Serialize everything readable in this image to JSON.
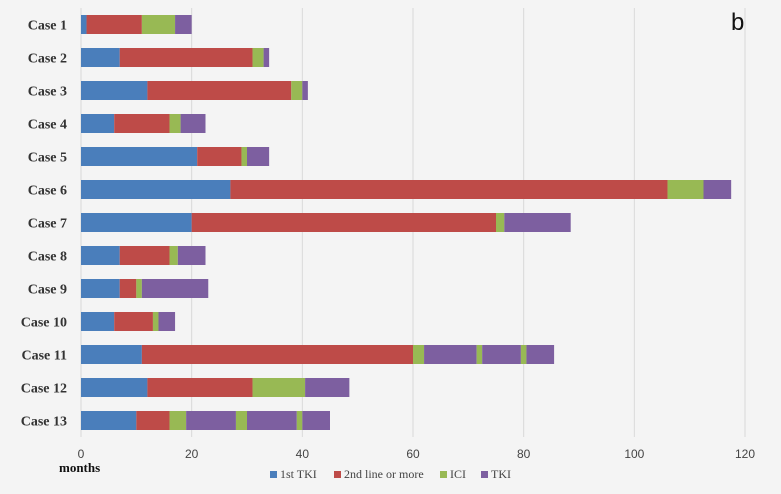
{
  "panel_letter": "b",
  "colors": {
    "background": "#f4f4f4",
    "grid": "#d9d9d9",
    "first_tki": "#4a7ebb",
    "second_line": "#be4b48",
    "ici": "#98b954",
    "tki": "#7d5fa0"
  },
  "chart_data": {
    "type": "bar",
    "orientation": "horizontal",
    "stacked": true,
    "title": "",
    "xlabel": "months",
    "ylabel": "",
    "xlim": [
      0,
      120
    ],
    "xticks": [
      0,
      20,
      40,
      60,
      80,
      100,
      120
    ],
    "grid": true,
    "legend_position": "bottom",
    "categories": [
      "Case 1",
      "Case 2",
      "Case 3",
      "Case 4",
      "Case 5",
      "Case 6",
      "Case 7",
      "Case 8",
      "Case 9",
      "Case 10",
      "Case 11",
      "Case 12",
      "Case 13"
    ],
    "legend": [
      {
        "name": "1st TKI",
        "color_key": "first_tki"
      },
      {
        "name": "2nd line or more",
        "color_key": "second_line"
      },
      {
        "name": "ICI",
        "color_key": "ici"
      },
      {
        "name": "TKI",
        "color_key": "tki"
      }
    ],
    "segments": [
      [
        {
          "s": "1st TKI",
          "v": 1
        },
        {
          "s": "2nd line or more",
          "v": 10
        },
        {
          "s": "ICI",
          "v": 6
        },
        {
          "s": "TKI",
          "v": 3
        }
      ],
      [
        {
          "s": "1st TKI",
          "v": 7
        },
        {
          "s": "2nd line or more",
          "v": 24
        },
        {
          "s": "ICI",
          "v": 2
        },
        {
          "s": "TKI",
          "v": 1
        }
      ],
      [
        {
          "s": "1st TKI",
          "v": 12
        },
        {
          "s": "2nd line or more",
          "v": 26
        },
        {
          "s": "ICI",
          "v": 2
        },
        {
          "s": "TKI",
          "v": 1
        }
      ],
      [
        {
          "s": "1st TKI",
          "v": 6
        },
        {
          "s": "2nd line or more",
          "v": 10
        },
        {
          "s": "ICI",
          "v": 2
        },
        {
          "s": "TKI",
          "v": 4.5
        }
      ],
      [
        {
          "s": "1st TKI",
          "v": 21
        },
        {
          "s": "2nd line or more",
          "v": 8
        },
        {
          "s": "ICI",
          "v": 1
        },
        {
          "s": "TKI",
          "v": 4
        }
      ],
      [
        {
          "s": "1st TKI",
          "v": 27
        },
        {
          "s": "2nd line or more",
          "v": 79
        },
        {
          "s": "ICI",
          "v": 6.5
        },
        {
          "s": "TKI",
          "v": 5
        }
      ],
      [
        {
          "s": "1st TKI",
          "v": 20
        },
        {
          "s": "2nd line or more",
          "v": 55
        },
        {
          "s": "ICI",
          "v": 1.5
        },
        {
          "s": "TKI",
          "v": 12
        }
      ],
      [
        {
          "s": "1st TKI",
          "v": 7
        },
        {
          "s": "2nd line or more",
          "v": 9
        },
        {
          "s": "ICI",
          "v": 1.5
        },
        {
          "s": "TKI",
          "v": 5
        }
      ],
      [
        {
          "s": "1st TKI",
          "v": 7
        },
        {
          "s": "2nd line or more",
          "v": 3
        },
        {
          "s": "ICI",
          "v": 1
        },
        {
          "s": "TKI",
          "v": 12
        }
      ],
      [
        {
          "s": "1st TKI",
          "v": 6
        },
        {
          "s": "2nd line or more",
          "v": 7
        },
        {
          "s": "ICI",
          "v": 1
        },
        {
          "s": "TKI",
          "v": 3
        }
      ],
      [
        {
          "s": "1st TKI",
          "v": 11
        },
        {
          "s": "2nd line or more",
          "v": 49
        },
        {
          "s": "ICI",
          "v": 2
        },
        {
          "s": "TKI",
          "v": 9.5
        },
        {
          "s": "ICI",
          "v": 1
        },
        {
          "s": "TKI",
          "v": 7
        },
        {
          "s": "ICI",
          "v": 1
        },
        {
          "s": "TKI",
          "v": 5
        }
      ],
      [
        {
          "s": "1st TKI",
          "v": 12
        },
        {
          "s": "2nd line or more",
          "v": 19
        },
        {
          "s": "ICI",
          "v": 9.5
        },
        {
          "s": "TKI",
          "v": 8
        }
      ],
      [
        {
          "s": "1st TKI",
          "v": 10
        },
        {
          "s": "2nd line or more",
          "v": 6
        },
        {
          "s": "ICI",
          "v": 3
        },
        {
          "s": "TKI",
          "v": 9
        },
        {
          "s": "ICI",
          "v": 2
        },
        {
          "s": "TKI",
          "v": 9
        },
        {
          "s": "ICI",
          "v": 1
        },
        {
          "s": "TKI",
          "v": 5
        }
      ]
    ]
  }
}
